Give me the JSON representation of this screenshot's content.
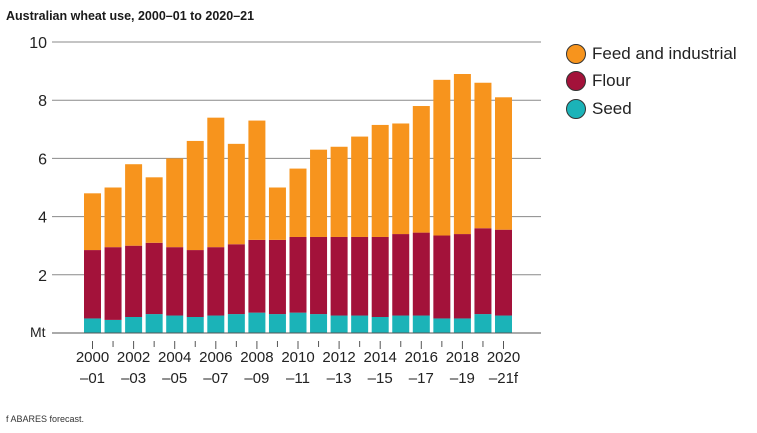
{
  "chart_data": {
    "type": "bar",
    "stacked": true,
    "title": "Australian wheat use, 2000–01 to 2020–21",
    "ylabel": "Mt",
    "ylim": [
      0,
      10
    ],
    "yticks": [
      "",
      "2",
      "4",
      "6",
      "8",
      "10"
    ],
    "grid": true,
    "legend_position": "right",
    "categories": [
      "2000-01",
      "2001-02",
      "2002-03",
      "2003-04",
      "2004-05",
      "2005-06",
      "2006-07",
      "2007-08",
      "2008-09",
      "2009-10",
      "2010-11",
      "2011-12",
      "2012-13",
      "2013-14",
      "2014-15",
      "2015-16",
      "2016-17",
      "2017-18",
      "2018-19",
      "2019-20",
      "2020-21f"
    ],
    "xtick_labels": [
      {
        "line1": "2000",
        "line2": "–01"
      },
      {
        "line1": "2002",
        "line2": "–03"
      },
      {
        "line1": "2004",
        "line2": "–05"
      },
      {
        "line1": "2006",
        "line2": "–07"
      },
      {
        "line1": "2008",
        "line2": "–09"
      },
      {
        "line1": "2010",
        "line2": "–11"
      },
      {
        "line1": "2012",
        "line2": "–13"
      },
      {
        "line1": "2014",
        "line2": "–15"
      },
      {
        "line1": "2016",
        "line2": "–17"
      },
      {
        "line1": "2018",
        "line2": "–19"
      },
      {
        "line1": "2020",
        "line2": "–21f"
      }
    ],
    "series": [
      {
        "name": "Seed",
        "color": "#1bb3b8",
        "values": [
          0.5,
          0.45,
          0.55,
          0.65,
          0.6,
          0.55,
          0.6,
          0.65,
          0.7,
          0.65,
          0.7,
          0.65,
          0.6,
          0.6,
          0.55,
          0.6,
          0.6,
          0.5,
          0.5,
          0.65,
          0.6
        ]
      },
      {
        "name": "Flour",
        "color": "#a3123a",
        "values": [
          2.35,
          2.5,
          2.45,
          2.45,
          2.35,
          2.3,
          2.35,
          2.4,
          2.5,
          2.55,
          2.6,
          2.65,
          2.7,
          2.7,
          2.75,
          2.8,
          2.85,
          2.85,
          2.9,
          2.95,
          2.95
        ]
      },
      {
        "name": "Feed and industrial",
        "color": "#f7941d",
        "values": [
          1.95,
          2.05,
          2.8,
          2.25,
          3.05,
          3.75,
          4.45,
          3.45,
          4.1,
          1.8,
          2.35,
          3.0,
          3.1,
          3.45,
          3.85,
          3.8,
          4.35,
          5.35,
          5.5,
          5.0,
          4.55
        ]
      }
    ]
  },
  "legend": {
    "items": [
      {
        "label": "Feed and industrial",
        "color": "#f7941d"
      },
      {
        "label": "Flour",
        "color": "#a3123a"
      },
      {
        "label": "Seed",
        "color": "#1bb3b8"
      }
    ]
  },
  "footnote": "f ABARES forecast."
}
